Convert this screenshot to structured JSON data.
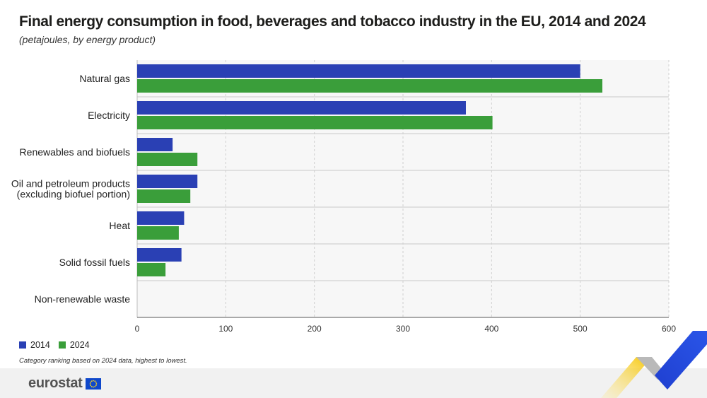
{
  "header": {
    "title": "Final energy consumption in food, beverages and tobacco industry in the EU, 2014 and 2024",
    "subtitle": "(petajoules, by energy product)"
  },
  "footnote": "Category ranking based on 2024 data, highest to lowest.",
  "brand": {
    "logo_text": "eurostat",
    "flag_icon": "eu-flag-icon"
  },
  "colors": {
    "series_2014": "#2a40b4",
    "series_2024": "#3a9e3a",
    "grid": "#cccccc"
  },
  "chart_data": {
    "type": "bar",
    "orientation": "horizontal",
    "categories": [
      "Natural gas",
      "Electricity",
      "Renewables and biofuels",
      "Oil and petroleum products (excluding biofuel portion)",
      "Heat",
      "Solid fossil fuels",
      "Non-renewable waste"
    ],
    "series": [
      {
        "name": "2014",
        "color": "#2a40b4",
        "values": [
          500,
          371,
          40,
          68,
          53,
          50,
          0
        ]
      },
      {
        "name": "2024",
        "color": "#3a9e3a",
        "values": [
          525,
          401,
          68,
          60,
          47,
          32,
          0
        ]
      }
    ],
    "xlim": [
      0,
      600
    ],
    "xticks": [
      0,
      100,
      200,
      300,
      400,
      500,
      600
    ],
    "grid": true,
    "legend_position": "bottom-left"
  }
}
